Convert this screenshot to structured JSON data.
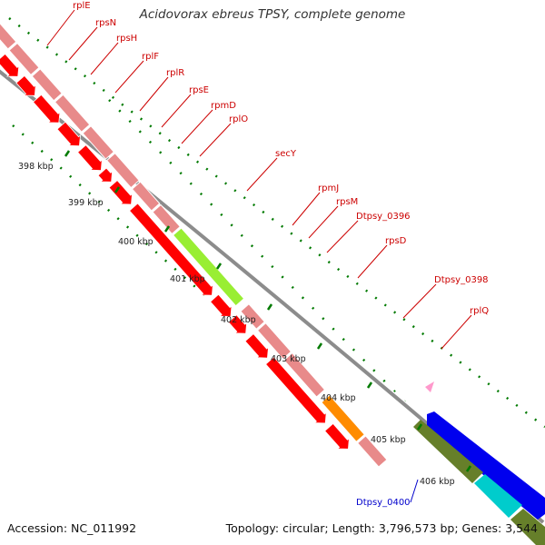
{
  "title": "Acidovorax ebreus TPSY, complete genome",
  "footer": {
    "accession": "Accession: NC_011992",
    "topology": "Topology: circular; Length: 3,796,573 bp; Genes: 3,544"
  },
  "colors": {
    "background": "#ffffff",
    "backbone": "#8c8c8c",
    "ribosomal_gene": "#e88a8a",
    "cds": "#ff0000",
    "secY_gene": "#99ee33",
    "dtpsy0398_gene": "#ff8c00",
    "dtpsy0400_gene": "#667f2a",
    "blue_gene": "#0000ee",
    "cyan_gene": "#00cccc",
    "tick": "#007a00",
    "gene_label": "#cc0000",
    "blue_label": "#0000cc"
  },
  "gene_labels": [
    {
      "name": "rplE",
      "color": "red"
    },
    {
      "name": "rpsN",
      "color": "red"
    },
    {
      "name": "rpsH",
      "color": "red"
    },
    {
      "name": "rplF",
      "color": "red"
    },
    {
      "name": "rplR",
      "color": "red"
    },
    {
      "name": "rpsE",
      "color": "red"
    },
    {
      "name": "rpmD",
      "color": "red"
    },
    {
      "name": "rplO",
      "color": "red"
    },
    {
      "name": "secY",
      "color": "red"
    },
    {
      "name": "rpmJ",
      "color": "red"
    },
    {
      "name": "rpsM",
      "color": "red"
    },
    {
      "name": "Dtpsy_0396",
      "color": "red"
    },
    {
      "name": "rpsD",
      "color": "red"
    },
    {
      "name": "Dtpsy_0398",
      "color": "red"
    },
    {
      "name": "rplQ",
      "color": "red"
    },
    {
      "name": "Dtpsy_0400",
      "color": "blue"
    }
  ],
  "kbp_labels": [
    "398 kbp",
    "399 kbp",
    "400 kbp",
    "401 kbp",
    "402 kbp",
    "403 kbp",
    "404 kbp",
    "405 kbp",
    "406 kbp"
  ]
}
